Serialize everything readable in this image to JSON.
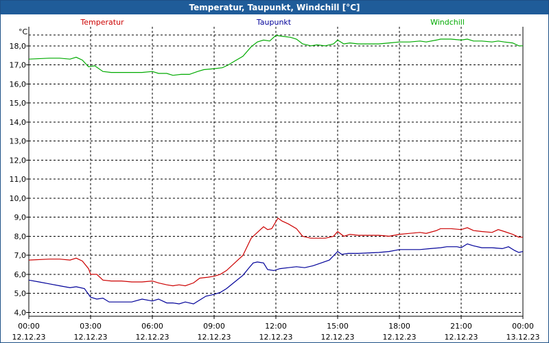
{
  "window": {
    "title": "Temperatur, Taupunkt, Windchill [°C]"
  },
  "chart_data": {
    "type": "line",
    "title": "Temperatur, Taupunkt, Windchill [°C]",
    "ylabel": "°C",
    "xlabel": "",
    "ylim": [
      3.8,
      19.0
    ],
    "xlim": [
      0,
      24
    ],
    "grid": true,
    "legend_placement": "top",
    "y_ticks": [
      {
        "v": 4.0,
        "label": "4,0"
      },
      {
        "v": 5.0,
        "label": "5,0"
      },
      {
        "v": 6.0,
        "label": "6,0"
      },
      {
        "v": 7.0,
        "label": "7,0"
      },
      {
        "v": 8.0,
        "label": "8,0"
      },
      {
        "v": 9.0,
        "label": "9,0"
      },
      {
        "v": 10.0,
        "label": "10,0"
      },
      {
        "v": 11.0,
        "label": "11,0"
      },
      {
        "v": 12.0,
        "label": "12,0"
      },
      {
        "v": 13.0,
        "label": "13,0"
      },
      {
        "v": 14.0,
        "label": "14,0"
      },
      {
        "v": 15.0,
        "label": "15,0"
      },
      {
        "v": 16.0,
        "label": "16,0"
      },
      {
        "v": 17.0,
        "label": "17,0"
      },
      {
        "v": 18.0,
        "label": "18,0"
      }
    ],
    "x_ticks": [
      {
        "v": 0,
        "time": "00:00",
        "date": "12.12.23"
      },
      {
        "v": 3,
        "time": "03:00",
        "date": "12.12.23"
      },
      {
        "v": 6,
        "time": "06:00",
        "date": "12.12.23"
      },
      {
        "v": 9,
        "time": "09:00",
        "date": "12.12.23"
      },
      {
        "v": 12,
        "time": "12:00",
        "date": "12.12.23"
      },
      {
        "v": 15,
        "time": "15:00",
        "date": "12.12.23"
      },
      {
        "v": 18,
        "time": "18:00",
        "date": "12.12.23"
      },
      {
        "v": 21,
        "time": "21:00",
        "date": "12.12.23"
      },
      {
        "v": 24,
        "time": "00:00",
        "date": "13.12.23"
      }
    ],
    "series": [
      {
        "name": "Temperatur",
        "color": "#cc0000",
        "points": [
          [
            0,
            6.75
          ],
          [
            1,
            6.8
          ],
          [
            1.5,
            6.8
          ],
          [
            2,
            6.75
          ],
          [
            2.3,
            6.85
          ],
          [
            2.6,
            6.7
          ],
          [
            2.9,
            6.3
          ],
          [
            3.0,
            6.0
          ],
          [
            3.3,
            6.0
          ],
          [
            3.6,
            5.7
          ],
          [
            4,
            5.65
          ],
          [
            4.5,
            5.65
          ],
          [
            5,
            5.6
          ],
          [
            5.5,
            5.6
          ],
          [
            6,
            5.65
          ],
          [
            6.3,
            5.55
          ],
          [
            6.7,
            5.45
          ],
          [
            7,
            5.4
          ],
          [
            7.3,
            5.45
          ],
          [
            7.6,
            5.4
          ],
          [
            8,
            5.55
          ],
          [
            8.3,
            5.8
          ],
          [
            8.7,
            5.85
          ],
          [
            9,
            5.9
          ],
          [
            9.3,
            6.0
          ],
          [
            9.6,
            6.2
          ],
          [
            10,
            6.6
          ],
          [
            10.4,
            7.0
          ],
          [
            10.8,
            7.9
          ],
          [
            11.2,
            8.3
          ],
          [
            11.4,
            8.5
          ],
          [
            11.6,
            8.35
          ],
          [
            11.8,
            8.4
          ],
          [
            12.1,
            8.95
          ],
          [
            12.3,
            8.8
          ],
          [
            12.6,
            8.65
          ],
          [
            13,
            8.4
          ],
          [
            13.3,
            8.0
          ],
          [
            13.7,
            7.9
          ],
          [
            14,
            7.9
          ],
          [
            14.4,
            7.9
          ],
          [
            14.8,
            8.0
          ],
          [
            15,
            8.25
          ],
          [
            15.3,
            8.0
          ],
          [
            15.6,
            8.1
          ],
          [
            16,
            8.05
          ],
          [
            17,
            8.05
          ],
          [
            17.5,
            8.0
          ],
          [
            18,
            8.1
          ],
          [
            18.5,
            8.15
          ],
          [
            19,
            8.2
          ],
          [
            19.3,
            8.15
          ],
          [
            19.8,
            8.3
          ],
          [
            20,
            8.4
          ],
          [
            20.5,
            8.4
          ],
          [
            21,
            8.35
          ],
          [
            21.3,
            8.45
          ],
          [
            21.6,
            8.3
          ],
          [
            22,
            8.25
          ],
          [
            22.5,
            8.2
          ],
          [
            22.8,
            8.35
          ],
          [
            23.1,
            8.25
          ],
          [
            23.5,
            8.1
          ],
          [
            23.8,
            7.95
          ],
          [
            24,
            7.95
          ]
        ]
      },
      {
        "name": "Taupunkt",
        "color": "#000099",
        "points": [
          [
            0,
            5.7
          ],
          [
            0.5,
            5.6
          ],
          [
            1,
            5.5
          ],
          [
            1.5,
            5.4
          ],
          [
            2,
            5.3
          ],
          [
            2.3,
            5.35
          ],
          [
            2.7,
            5.25
          ],
          [
            3.0,
            4.8
          ],
          [
            3.3,
            4.7
          ],
          [
            3.6,
            4.75
          ],
          [
            3.9,
            4.55
          ],
          [
            4.5,
            4.55
          ],
          [
            5,
            4.55
          ],
          [
            5.5,
            4.7
          ],
          [
            6,
            4.6
          ],
          [
            6.3,
            4.7
          ],
          [
            6.7,
            4.5
          ],
          [
            7,
            4.5
          ],
          [
            7.3,
            4.45
          ],
          [
            7.6,
            4.55
          ],
          [
            8,
            4.45
          ],
          [
            8.3,
            4.65
          ],
          [
            8.6,
            4.85
          ],
          [
            9,
            4.95
          ],
          [
            9.3,
            5.05
          ],
          [
            9.6,
            5.25
          ],
          [
            10,
            5.6
          ],
          [
            10.4,
            5.95
          ],
          [
            10.7,
            6.35
          ],
          [
            10.9,
            6.6
          ],
          [
            11.1,
            6.65
          ],
          [
            11.4,
            6.6
          ],
          [
            11.6,
            6.25
          ],
          [
            11.9,
            6.2
          ],
          [
            12.2,
            6.3
          ],
          [
            12.6,
            6.35
          ],
          [
            13,
            6.4
          ],
          [
            13.4,
            6.35
          ],
          [
            13.8,
            6.45
          ],
          [
            14.2,
            6.6
          ],
          [
            14.6,
            6.75
          ],
          [
            15,
            7.2
          ],
          [
            15.2,
            7.05
          ],
          [
            15.5,
            7.1
          ],
          [
            16,
            7.1
          ],
          [
            17,
            7.15
          ],
          [
            17.5,
            7.2
          ],
          [
            18,
            7.3
          ],
          [
            18.5,
            7.3
          ],
          [
            19,
            7.3
          ],
          [
            19.5,
            7.35
          ],
          [
            20,
            7.4
          ],
          [
            20.3,
            7.45
          ],
          [
            20.8,
            7.45
          ],
          [
            21,
            7.4
          ],
          [
            21.3,
            7.6
          ],
          [
            21.6,
            7.5
          ],
          [
            22,
            7.4
          ],
          [
            22.5,
            7.4
          ],
          [
            23,
            7.35
          ],
          [
            23.3,
            7.45
          ],
          [
            23.6,
            7.25
          ],
          [
            23.8,
            7.15
          ],
          [
            24,
            7.2
          ]
        ]
      },
      {
        "name": "Windchill",
        "color": "#00aa00",
        "points": [
          [
            0,
            17.3
          ],
          [
            1,
            17.35
          ],
          [
            1.5,
            17.35
          ],
          [
            2,
            17.3
          ],
          [
            2.3,
            17.4
          ],
          [
            2.6,
            17.25
          ],
          [
            2.9,
            16.9
          ],
          [
            3.2,
            16.95
          ],
          [
            3.6,
            16.65
          ],
          [
            4,
            16.6
          ],
          [
            4.5,
            16.6
          ],
          [
            5,
            16.6
          ],
          [
            5.5,
            16.6
          ],
          [
            6,
            16.65
          ],
          [
            6.3,
            16.55
          ],
          [
            6.7,
            16.55
          ],
          [
            7,
            16.45
          ],
          [
            7.4,
            16.5
          ],
          [
            7.8,
            16.5
          ],
          [
            8.2,
            16.65
          ],
          [
            8.5,
            16.75
          ],
          [
            9,
            16.8
          ],
          [
            9.4,
            16.85
          ],
          [
            9.7,
            17.0
          ],
          [
            10,
            17.2
          ],
          [
            10.4,
            17.45
          ],
          [
            10.8,
            17.95
          ],
          [
            11.1,
            18.2
          ],
          [
            11.4,
            18.3
          ],
          [
            11.7,
            18.25
          ],
          [
            12.0,
            18.55
          ],
          [
            12.3,
            18.5
          ],
          [
            12.7,
            18.45
          ],
          [
            13,
            18.35
          ],
          [
            13.3,
            18.1
          ],
          [
            13.7,
            18.0
          ],
          [
            14,
            18.05
          ],
          [
            14.4,
            18.0
          ],
          [
            14.8,
            18.1
          ],
          [
            15,
            18.3
          ],
          [
            15.3,
            18.1
          ],
          [
            15.6,
            18.15
          ],
          [
            16,
            18.1
          ],
          [
            17,
            18.1
          ],
          [
            17.5,
            18.15
          ],
          [
            18,
            18.2
          ],
          [
            18.5,
            18.2
          ],
          [
            19,
            18.25
          ],
          [
            19.3,
            18.2
          ],
          [
            19.8,
            18.3
          ],
          [
            20,
            18.35
          ],
          [
            20.5,
            18.35
          ],
          [
            21,
            18.3
          ],
          [
            21.3,
            18.35
          ],
          [
            21.6,
            18.25
          ],
          [
            22,
            18.25
          ],
          [
            22.5,
            18.2
          ],
          [
            22.8,
            18.25
          ],
          [
            23.1,
            18.2
          ],
          [
            23.5,
            18.15
          ],
          [
            23.8,
            18.0
          ],
          [
            24,
            18.0
          ]
        ]
      }
    ]
  }
}
